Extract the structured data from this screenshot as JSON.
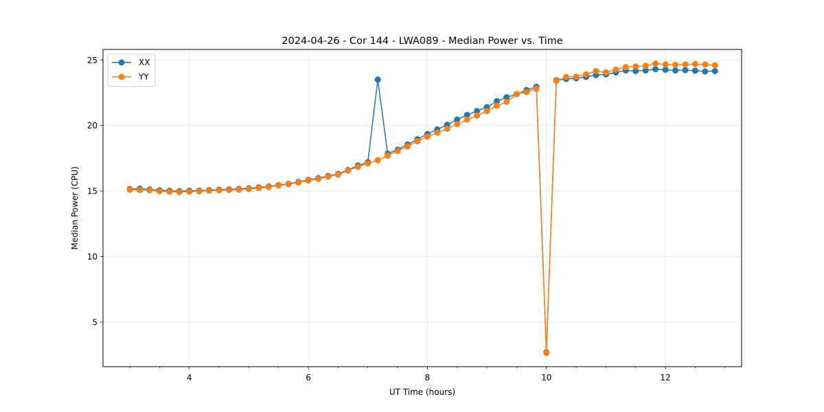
{
  "chart_data": {
    "type": "line",
    "title": "2024-04-26 - Cor 144 - LWA089 - Median Power vs. Time",
    "xlabel": "UT Time (hours)",
    "ylabel": "Median Power (CPU)",
    "xlim": [
      2.55,
      13.28
    ],
    "ylim": [
      1.6,
      25.8
    ],
    "xticks": [
      4,
      6,
      8,
      10,
      12
    ],
    "xtick_labels": [
      "4",
      "6",
      "8",
      "10",
      "12"
    ],
    "yticks": [
      5,
      10,
      15,
      20,
      25
    ],
    "ytick_labels": [
      "5",
      "10",
      "15",
      "20",
      "25"
    ],
    "grid": true,
    "legend_position": "top-left",
    "x": [
      3.0,
      3.167,
      3.333,
      3.5,
      3.667,
      3.833,
      4.0,
      4.167,
      4.333,
      4.5,
      4.667,
      4.833,
      5.0,
      5.167,
      5.333,
      5.5,
      5.667,
      5.833,
      6.0,
      6.167,
      6.333,
      6.5,
      6.667,
      6.833,
      7.0,
      7.167,
      7.333,
      7.5,
      7.667,
      7.833,
      8.0,
      8.167,
      8.333,
      8.5,
      8.667,
      8.833,
      9.0,
      9.167,
      9.333,
      9.5,
      9.667,
      9.833,
      10.0,
      10.167,
      10.333,
      10.5,
      10.667,
      10.833,
      11.0,
      11.167,
      11.333,
      11.5,
      11.667,
      11.833,
      12.0,
      12.167,
      12.333,
      12.5,
      12.667,
      12.833
    ],
    "series": [
      {
        "name": "XX",
        "color": "#1f77b4",
        "values": [
          15.15,
          15.18,
          15.12,
          15.05,
          15.02,
          14.98,
          15.02,
          15.03,
          15.07,
          15.1,
          15.13,
          15.16,
          15.2,
          15.28,
          15.35,
          15.45,
          15.55,
          15.7,
          15.85,
          15.98,
          16.15,
          16.3,
          16.6,
          16.95,
          17.2,
          23.5,
          17.85,
          18.15,
          18.55,
          18.95,
          19.35,
          19.7,
          20.05,
          20.45,
          20.8,
          21.1,
          21.4,
          21.85,
          22.15,
          22.4,
          22.7,
          22.95,
          2.7,
          23.45,
          23.55,
          23.6,
          23.7,
          23.85,
          23.9,
          24.05,
          24.2,
          24.15,
          24.2,
          24.3,
          24.25,
          24.2,
          24.22,
          24.18,
          24.12,
          24.15
        ]
      },
      {
        "name": "YY",
        "color": "#ff7f0e",
        "values": [
          15.1,
          15.08,
          15.05,
          14.98,
          14.95,
          14.92,
          14.95,
          14.98,
          15.02,
          15.05,
          15.08,
          15.1,
          15.15,
          15.22,
          15.3,
          15.42,
          15.52,
          15.65,
          15.8,
          15.92,
          16.1,
          16.25,
          16.55,
          16.85,
          17.1,
          17.35,
          17.7,
          18.05,
          18.4,
          18.8,
          19.15,
          19.45,
          19.75,
          20.1,
          20.45,
          20.75,
          21.1,
          21.5,
          21.8,
          22.4,
          22.55,
          22.8,
          2.65,
          23.4,
          23.7,
          23.72,
          23.9,
          24.15,
          24.05,
          24.25,
          24.45,
          24.5,
          24.55,
          24.72,
          24.65,
          24.62,
          24.65,
          24.68,
          24.65,
          24.6
        ]
      }
    ]
  }
}
